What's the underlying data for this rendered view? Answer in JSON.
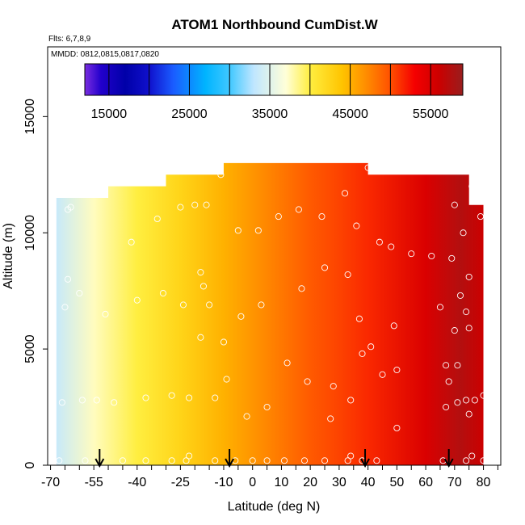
{
  "chart_data": {
    "type": "heatmap",
    "title": "ATOM1 Northbound CumDist.W",
    "subtitle_flights": "Flts: 6,7,8,9",
    "subtitle_dates": "MMDD: 0812,0815,0817,0820",
    "xlabel": "Latitude (deg N)",
    "ylabel": "Altitude (m)",
    "xlim": [
      -71,
      86
    ],
    "ylim": [
      0,
      18000
    ],
    "x_ticks": [
      -70,
      -55,
      -40,
      -25,
      -10,
      0,
      10,
      20,
      30,
      40,
      50,
      60,
      70,
      80
    ],
    "x_tick_labels": [
      "-70",
      "-55",
      "-40",
      "-25",
      "-10",
      "0",
      "10",
      "20",
      "30",
      "40",
      "50",
      "60",
      "70",
      "80"
    ],
    "x_minor_ticks": [
      -65,
      -60,
      -50,
      -45,
      -35,
      -30,
      -20,
      -15,
      -5,
      5,
      15,
      25,
      35,
      45,
      55,
      65,
      75,
      85
    ],
    "y_ticks": [
      0,
      5000,
      10000,
      15000
    ],
    "y_tick_labels": [
      "0",
      "5000",
      "10000",
      "15000"
    ],
    "colorbar": {
      "min": 12000,
      "max": 59000,
      "boundaries": [
        15000,
        20000,
        25000,
        30000,
        35000,
        40000,
        45000,
        50000,
        55000
      ],
      "tick_values": [
        15000,
        25000,
        35000,
        45000,
        55000
      ],
      "tick_labels": [
        "15000",
        "25000",
        "35000",
        "45000",
        "55000"
      ],
      "stops": [
        {
          "v": 12000,
          "c": "#7a2ee0"
        },
        {
          "v": 14000,
          "c": "#2200cc"
        },
        {
          "v": 17000,
          "c": "#0000a8"
        },
        {
          "v": 20000,
          "c": "#1010cc"
        },
        {
          "v": 23000,
          "c": "#1a5cff"
        },
        {
          "v": 27000,
          "c": "#00b4ff"
        },
        {
          "v": 30000,
          "c": "#40c8ff"
        },
        {
          "v": 33000,
          "c": "#bfe6ff"
        },
        {
          "v": 37000,
          "c": "#ffffd8"
        },
        {
          "v": 40000,
          "c": "#ffee40"
        },
        {
          "v": 44000,
          "c": "#ffc400"
        },
        {
          "v": 47000,
          "c": "#ff8c00"
        },
        {
          "v": 50000,
          "c": "#ff5000"
        },
        {
          "v": 53000,
          "c": "#f50000"
        },
        {
          "v": 56000,
          "c": "#cc0000"
        },
        {
          "v": 59000,
          "c": "#991d1d"
        }
      ]
    },
    "field": {
      "value_at_latitude": [
        {
          "lat": -68,
          "v": 33500
        },
        {
          "lat": -55,
          "v": 37500
        },
        {
          "lat": -40,
          "v": 40000
        },
        {
          "lat": -25,
          "v": 42500
        },
        {
          "lat": -10,
          "v": 45000
        },
        {
          "lat": 0,
          "v": 46500
        },
        {
          "lat": 20,
          "v": 49500
        },
        {
          "lat": 30,
          "v": 50500
        },
        {
          "lat": 40,
          "v": 51500
        },
        {
          "lat": 60,
          "v": 55000
        },
        {
          "lat": 72,
          "v": 57500
        },
        {
          "lat": 80,
          "v": 56000
        }
      ],
      "top_profile": [
        {
          "from": -68,
          "to": -50,
          "top": 11500
        },
        {
          "from": -50,
          "to": -30,
          "top": 12000
        },
        {
          "from": -30,
          "to": -10,
          "top": 12500
        },
        {
          "from": -10,
          "to": 40,
          "top": 13000
        },
        {
          "from": 40,
          "to": 75,
          "top": 12500
        },
        {
          "from": 75,
          "to": 80,
          "top": 11200
        }
      ]
    },
    "flight_arrows_lat": [
      -53,
      -8,
      39,
      68
    ],
    "points": [
      [
        -67,
        200
      ],
      [
        -66,
        2700
      ],
      [
        -65,
        6800
      ],
      [
        -64,
        8000
      ],
      [
        -64,
        11000
      ],
      [
        -63,
        11100
      ],
      [
        -60,
        7400
      ],
      [
        -59,
        2800
      ],
      [
        -58,
        200
      ],
      [
        -54,
        2800
      ],
      [
        -51,
        6500
      ],
      [
        -48,
        2700
      ],
      [
        -45,
        200
      ],
      [
        -42,
        9600
      ],
      [
        -40,
        7100
      ],
      [
        -37,
        200
      ],
      [
        -37,
        2900
      ],
      [
        -33,
        10600
      ],
      [
        -31,
        7400
      ],
      [
        -28,
        200
      ],
      [
        -28,
        3000
      ],
      [
        -25,
        11100
      ],
      [
        -24,
        6900
      ],
      [
        -23,
        200
      ],
      [
        -22,
        400
      ],
      [
        -22,
        2900
      ],
      [
        -20,
        11200
      ],
      [
        -18,
        8300
      ],
      [
        -18,
        5500
      ],
      [
        -17,
        7700
      ],
      [
        -16,
        11200
      ],
      [
        -15,
        6900
      ],
      [
        -13,
        200
      ],
      [
        -13,
        2900
      ],
      [
        -11,
        12500
      ],
      [
        -10,
        5300
      ],
      [
        -9,
        3700
      ],
      [
        -6,
        200
      ],
      [
        -5,
        10100
      ],
      [
        -4,
        6400
      ],
      [
        -2,
        2100
      ],
      [
        0,
        200
      ],
      [
        2,
        10100
      ],
      [
        3,
        6900
      ],
      [
        5,
        200
      ],
      [
        5,
        2500
      ],
      [
        9,
        10700
      ],
      [
        11,
        200
      ],
      [
        12,
        4400
      ],
      [
        16,
        11000
      ],
      [
        17,
        7600
      ],
      [
        18,
        200
      ],
      [
        19,
        3600
      ],
      [
        24,
        10700
      ],
      [
        25,
        8500
      ],
      [
        25,
        200
      ],
      [
        27,
        2000
      ],
      [
        28,
        3400
      ],
      [
        32,
        11700
      ],
      [
        33,
        8200
      ],
      [
        33,
        200
      ],
      [
        34,
        2800
      ],
      [
        34,
        400
      ],
      [
        36,
        10300
      ],
      [
        37,
        6300
      ],
      [
        38,
        4800
      ],
      [
        38,
        200
      ],
      [
        40,
        12800
      ],
      [
        41,
        5100
      ],
      [
        43,
        200
      ],
      [
        44,
        9600
      ],
      [
        45,
        3900
      ],
      [
        48,
        9400
      ],
      [
        49,
        6000
      ],
      [
        50,
        1600
      ],
      [
        50,
        4100
      ],
      [
        55,
        9100
      ],
      [
        62,
        9000
      ],
      [
        65,
        6800
      ],
      [
        66,
        200
      ],
      [
        67,
        2500
      ],
      [
        67,
        4300
      ],
      [
        68,
        3600
      ],
      [
        69,
        8900
      ],
      [
        70,
        11200
      ],
      [
        70,
        5800
      ],
      [
        71,
        2700
      ],
      [
        71,
        4300
      ],
      [
        72,
        7300
      ],
      [
        73,
        10000
      ],
      [
        74,
        6600
      ],
      [
        74,
        2800
      ],
      [
        74,
        200
      ],
      [
        75,
        5900
      ],
      [
        75,
        2200
      ],
      [
        75,
        8100
      ],
      [
        76,
        400
      ],
      [
        76,
        12000
      ],
      [
        77,
        2800
      ],
      [
        79,
        10700
      ],
      [
        80,
        3000
      ],
      [
        80,
        200
      ]
    ]
  }
}
